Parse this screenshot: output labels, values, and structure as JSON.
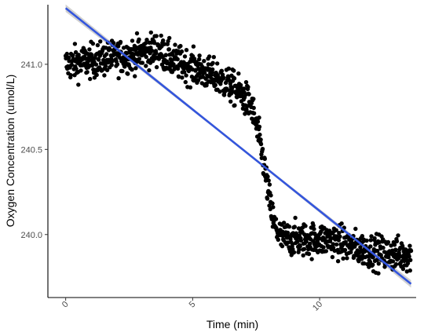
{
  "chart_data": {
    "type": "scatter",
    "title": "",
    "xlabel": "Time (min)",
    "ylabel": "Oxygen Concentration (umol/L)",
    "xlim": [
      -0.7,
      13.8
    ],
    "ylim": [
      239.63,
      241.35
    ],
    "xticks": [
      "0",
      "5",
      "10"
    ],
    "yticks": [
      "240.0",
      "240.5",
      "241.0"
    ],
    "grid": false,
    "legend": "none",
    "colors": {
      "points": "#000000",
      "fit_line": "#3355dd",
      "confidence_band": "#c0c0c0"
    },
    "points_approx": {
      "description": "approx. 1,100 points at ~0.0125 min intervals",
      "x_start": 0.0,
      "x_end": 13.6,
      "mean_profile": [
        [
          0.0,
          241.0
        ],
        [
          1.0,
          241.02
        ],
        [
          2.0,
          241.04
        ],
        [
          2.8,
          241.06
        ],
        [
          3.6,
          241.09
        ],
        [
          4.2,
          241.02
        ],
        [
          5.0,
          240.98
        ],
        [
          6.0,
          240.92
        ],
        [
          6.8,
          240.84
        ],
        [
          7.3,
          240.76
        ],
        [
          7.6,
          240.58
        ],
        [
          7.8,
          240.42
        ],
        [
          8.0,
          240.22
        ],
        [
          8.2,
          240.06
        ],
        [
          8.5,
          239.98
        ],
        [
          9.5,
          239.97
        ],
        [
          10.5,
          239.97
        ],
        [
          11.5,
          239.92
        ],
        [
          12.5,
          239.89
        ],
        [
          13.6,
          239.88
        ]
      ],
      "scatter_sd": 0.05
    },
    "fit": {
      "method": "linear regression",
      "x": [
        0.0,
        13.6
      ],
      "y": [
        241.33,
        239.71
      ],
      "ci_halfwidth_ends": 0.022,
      "ci_halfwidth_mid": 0.008
    }
  }
}
